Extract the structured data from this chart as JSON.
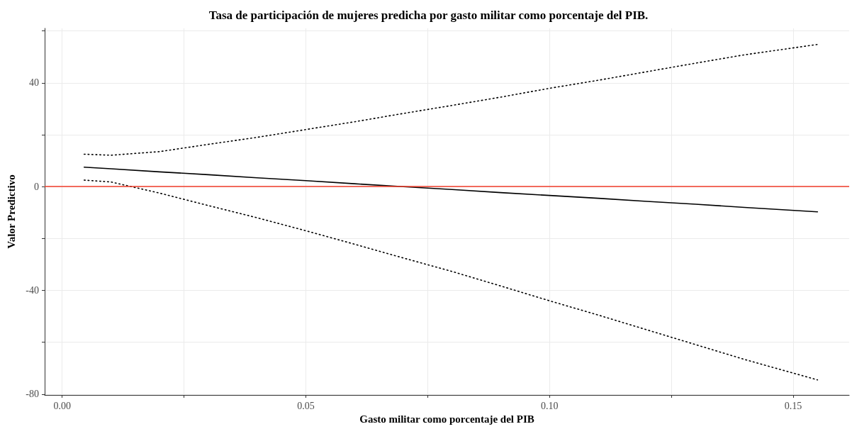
{
  "chart_data": {
    "type": "line",
    "title": "Tasa de participación de mujeres predicha por gasto militar como porcentaje del PIB.",
    "xlabel": "Gasto militar como porcentaje del PIB",
    "ylabel": "Valor Predictivo",
    "x": [
      0.0045,
      0.01,
      0.02,
      0.03,
      0.04,
      0.05,
      0.06,
      0.07,
      0.08,
      0.09,
      0.1,
      0.11,
      0.12,
      0.13,
      0.14,
      0.155
    ],
    "series": [
      {
        "color": "#000000",
        "line_style": "solid",
        "values": [
          7.5,
          6.9,
          5.7,
          4.6,
          3.4,
          2.3,
          1.1,
          0.0,
          -1.1,
          -2.3,
          -3.4,
          -4.5,
          -5.7,
          -6.8,
          -8.0,
          -9.7
        ]
      },
      {
        "color": "#000000",
        "line_style": "dotted",
        "values": [
          12.5,
          12.1,
          13.5,
          16.3,
          19.0,
          22.0,
          25.0,
          28.2,
          31.3,
          34.5,
          37.9,
          41.0,
          44.3,
          47.6,
          50.8,
          54.8
        ]
      },
      {
        "color": "#000000",
        "line_style": "dotted",
        "values": [
          2.5,
          1.8,
          -2.5,
          -7.3,
          -12.0,
          -17.0,
          -22.2,
          -27.5,
          -32.7,
          -38.3,
          -44.0,
          -49.5,
          -55.2,
          -60.9,
          -66.6,
          -74.5
        ]
      }
    ],
    "ref_lines": [
      {
        "axis": "y",
        "value": 0,
        "color": "#f03c2a"
      }
    ],
    "xlim": [
      -0.0036,
      0.1615
    ],
    "ylim": [
      -80.3,
      61
    ],
    "xticks": [
      {
        "value": 0,
        "label": "0.00"
      },
      {
        "value": 0.025,
        "label": null
      },
      {
        "value": 0.05,
        "label": "0.05"
      },
      {
        "value": 0.075,
        "label": null
      },
      {
        "value": 0.1,
        "label": "0.10"
      },
      {
        "value": 0.125,
        "label": null
      },
      {
        "value": 0.15,
        "label": "0.15"
      }
    ],
    "yticks": [
      -80,
      {
        "value": -60,
        "label": null
      },
      -40,
      {
        "value": -20,
        "label": null
      },
      0,
      {
        "value": 20,
        "label": null
      },
      40,
      {
        "value": 60,
        "label": null
      }
    ],
    "grid": true,
    "marker": "none"
  }
}
